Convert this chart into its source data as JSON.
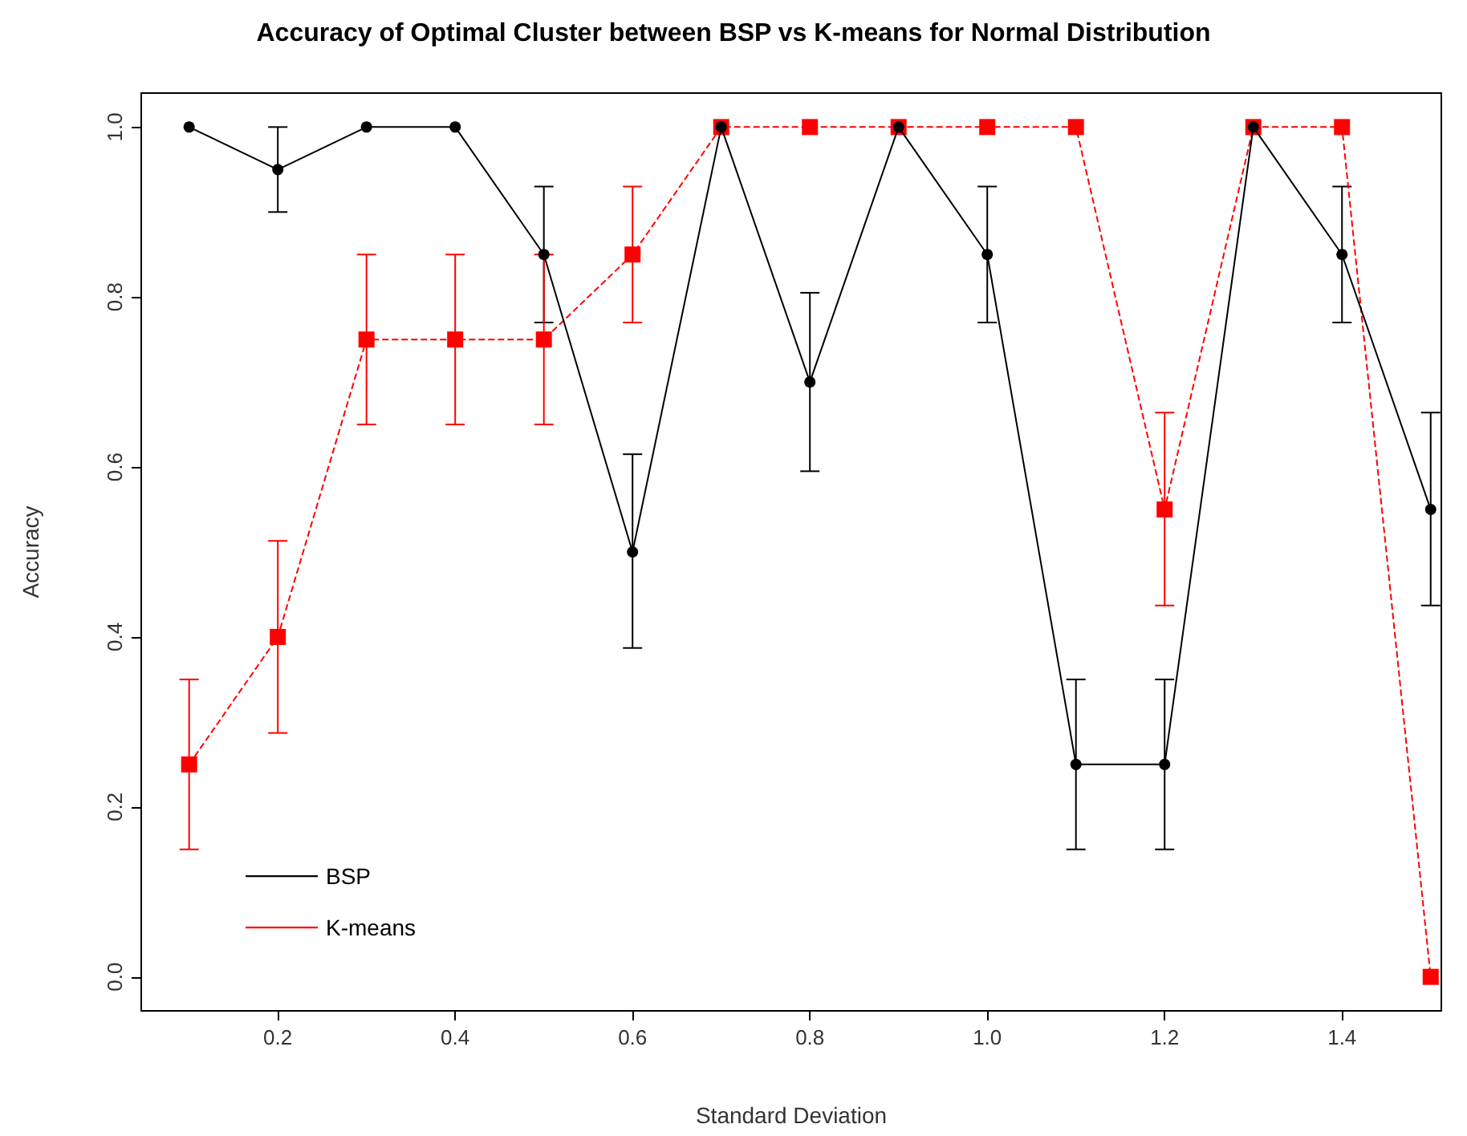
{
  "chart_data": {
    "type": "line",
    "title": "Accuracy of Optimal Cluster between BSP vs K-means for Normal Distribution",
    "xlabel": "Standard Deviation",
    "ylabel": "Accuracy",
    "x": [
      0.1,
      0.2,
      0.3,
      0.4,
      0.5,
      0.6,
      0.7,
      0.8,
      0.9,
      1.0,
      1.1,
      1.2,
      1.3,
      1.4,
      1.5
    ],
    "series": [
      {
        "name": "BSP",
        "color": "#000000",
        "marker": "circle",
        "line_style": "solid",
        "values": [
          1.0,
          0.95,
          1.0,
          1.0,
          0.85,
          0.5,
          1.0,
          0.7,
          1.0,
          0.85,
          0.25,
          0.25,
          1.0,
          0.85,
          0.55
        ],
        "errors": [
          null,
          [
            0.9,
            1.0
          ],
          null,
          null,
          [
            0.77,
            0.93
          ],
          [
            0.387,
            0.615
          ],
          null,
          [
            0.595,
            0.805
          ],
          null,
          [
            0.77,
            0.93
          ],
          [
            0.15,
            0.35
          ],
          [
            0.15,
            0.35
          ],
          null,
          [
            0.77,
            0.93
          ],
          [
            0.437,
            0.664
          ]
        ]
      },
      {
        "name": "K-means",
        "color": "#ff0000",
        "marker": "square",
        "line_style": "dashed",
        "values": [
          0.25,
          0.4,
          0.75,
          0.75,
          0.75,
          0.85,
          1.0,
          1.0,
          1.0,
          1.0,
          1.0,
          0.55,
          1.0,
          1.0,
          0.0
        ],
        "errors": [
          [
            0.15,
            0.35
          ],
          [
            0.287,
            0.513
          ],
          [
            0.65,
            0.85
          ],
          [
            0.65,
            0.85
          ],
          [
            0.65,
            0.85
          ],
          [
            0.77,
            0.93
          ],
          null,
          null,
          null,
          null,
          null,
          [
            0.437,
            0.664
          ],
          null,
          null,
          null
        ]
      }
    ],
    "xlim": [
      0.046,
      1.512
    ],
    "xticks": [
      0.2,
      0.4,
      0.6,
      0.8,
      {
        "value": 1.0,
        "label": "1.0"
      },
      1.2,
      1.4
    ],
    "ylim": [
      -0.04,
      1.04
    ],
    "yticks": [
      {
        "value": 0,
        "label": "0.0"
      },
      0.2,
      0.4,
      0.6,
      0.8,
      {
        "value": 1.0,
        "label": "1.0"
      }
    ],
    "grid": false,
    "legend": "bottom left"
  }
}
